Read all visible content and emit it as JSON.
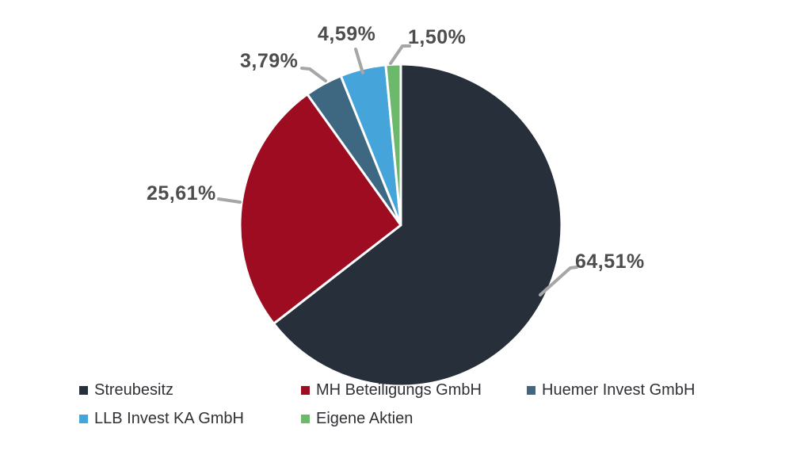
{
  "page": {
    "background": "#FFFFFF"
  },
  "chart_data": {
    "type": "pie",
    "title": "",
    "unit": "%",
    "value_format": "comma-decimal",
    "direction": "clockwise",
    "start_angle_deg": 0,
    "legend_position": "bottom",
    "leader_line_color": "#A6A6A6",
    "label_color": "#4D4D4D",
    "legend_text_color": "#2F3136",
    "slice_border_color": "#FFFFFF",
    "slices": [
      {
        "name": "Streubesitz",
        "value": 64.51,
        "label": "64,51%",
        "color": "#262F3A"
      },
      {
        "name": "MH Beteiligungs GmbH",
        "value": 25.61,
        "label": "25,61%",
        "color": "#9E0C22"
      },
      {
        "name": "Huemer Invest GmbH",
        "value": 3.79,
        "label": "3,79%",
        "color": "#3E6881"
      },
      {
        "name": "LLB Invest KA GmbH",
        "value": 4.59,
        "label": "4,59%",
        "color": "#45A5DB"
      },
      {
        "name": "Eigene Aktien",
        "value": 1.5,
        "label": "1,50%",
        "color": "#6CB96B"
      }
    ]
  }
}
